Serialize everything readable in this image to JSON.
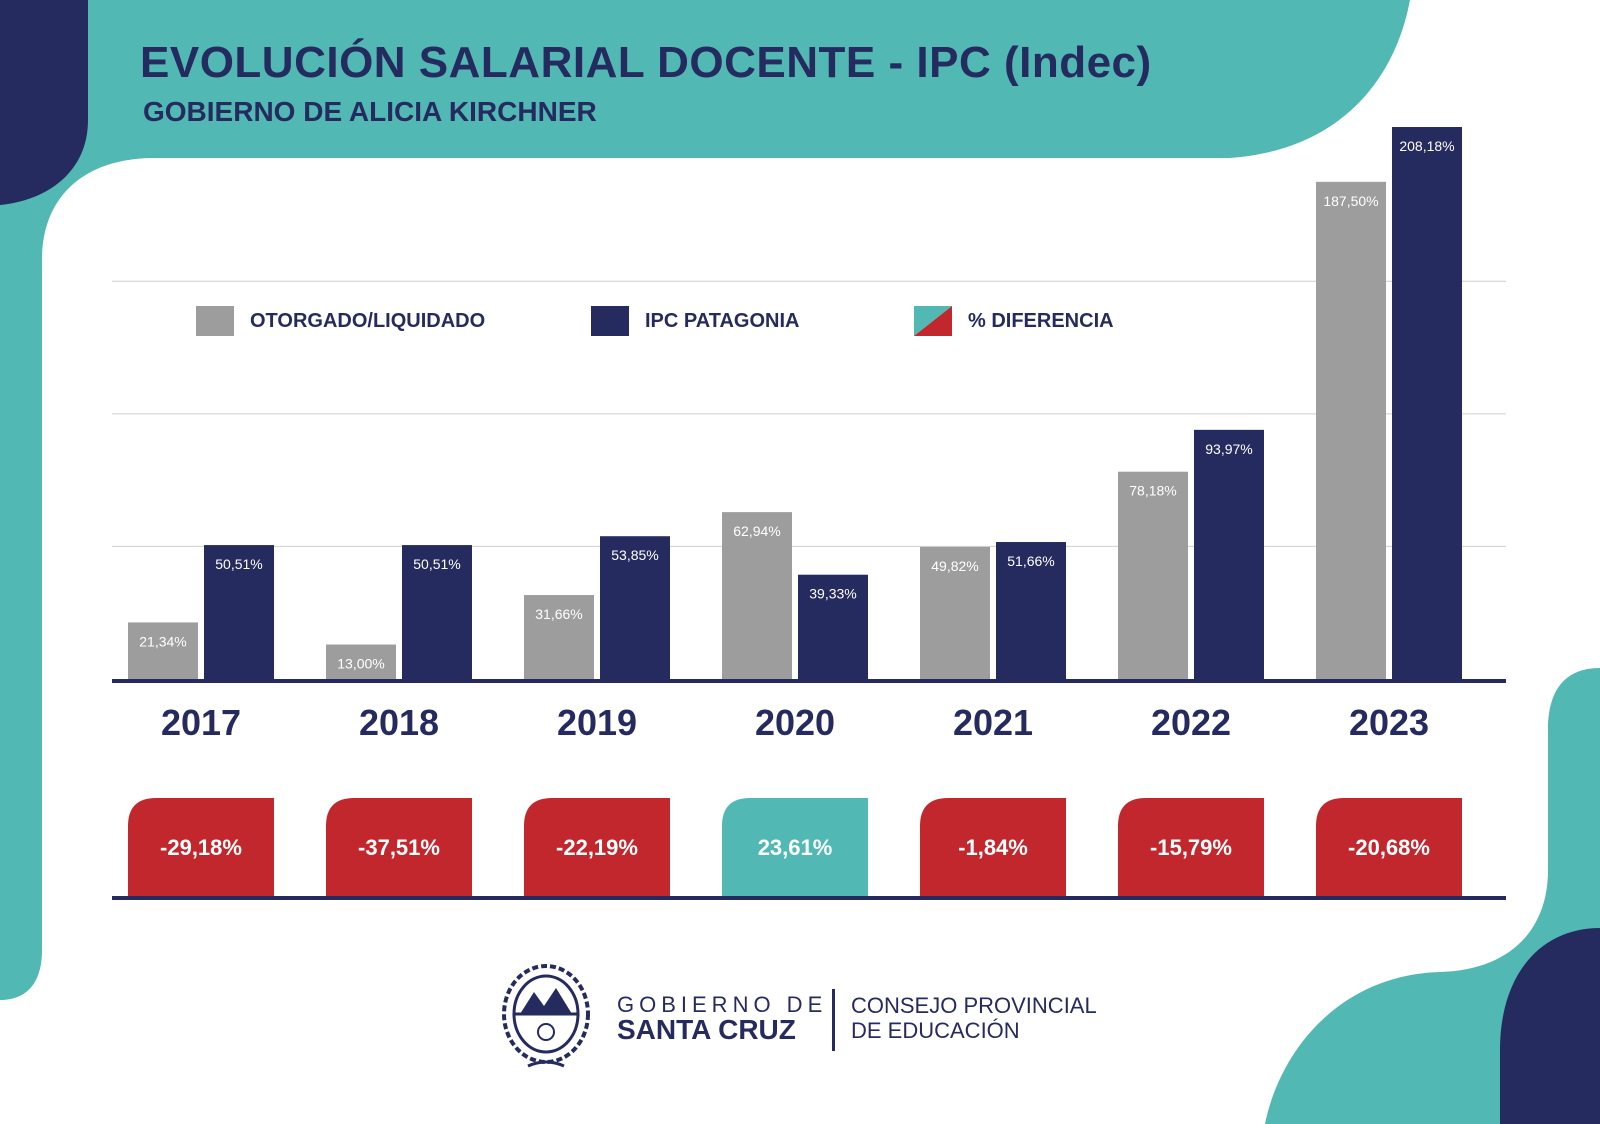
{
  "header": {
    "title": "EVOLUCIÓN SALARIAL DOCENTE - IPC (Indec)",
    "subtitle": "GOBIERNO DE ALICIA KIRCHNER"
  },
  "legend": {
    "items": [
      {
        "label": "OTORGADO/LIQUIDADO",
        "color": "#9d9d9d"
      },
      {
        "label": "IPC PATAGONIA",
        "color": "#262b5f"
      },
      {
        "label": "% DIFERENCIA",
        "colors": [
          "#51b8b3",
          "#c1272d"
        ]
      }
    ]
  },
  "colors": {
    "otorgado": "#9d9d9d",
    "ipc": "#262b5f",
    "negative": "#c1272d",
    "positive": "#51b8b3",
    "background_shape": "#51b8b3",
    "accent_dark": "#262b5f"
  },
  "chart_data": {
    "type": "bar",
    "categories": [
      "2017",
      "2018",
      "2019",
      "2020",
      "2021",
      "2022",
      "2023"
    ],
    "series": [
      {
        "name": "OTORGADO/LIQUIDADO",
        "values": [
          21.34,
          13.0,
          31.66,
          62.94,
          49.82,
          78.18,
          187.5
        ],
        "labels": [
          "21,34%",
          "13,00%",
          "31,66%",
          "62,94%",
          "49,82%",
          "78,18%",
          "187,50%"
        ]
      },
      {
        "name": "IPC PATAGONIA",
        "values": [
          50.51,
          50.51,
          53.85,
          39.33,
          51.66,
          93.97,
          208.18
        ],
        "labels": [
          "50,51%",
          "50,51%",
          "53,85%",
          "39,33%",
          "51,66%",
          "93,97%",
          "208,18%"
        ]
      }
    ],
    "difference": {
      "name": "% DIFERENCIA",
      "values": [
        -29.18,
        -37.51,
        -22.19,
        23.61,
        -1.84,
        -15.79,
        -20.68
      ],
      "labels": [
        "-29,18%",
        "-37,51%",
        "-22,19%",
        "23,61%",
        "-1,84%",
        "-15,79%",
        "-20,68%"
      ]
    },
    "ylim": [
      0,
      208.18
    ],
    "grid": true,
    "legend_position": "top-left"
  },
  "footer": {
    "gov_line1": "GOBIERNO DE",
    "gov_line2": "SANTA CRUZ",
    "org_line1": "CONSEJO PROVINCIAL",
    "org_line2": "DE EDUCACIÓN",
    "seal_icon": "province-seal-icon"
  }
}
